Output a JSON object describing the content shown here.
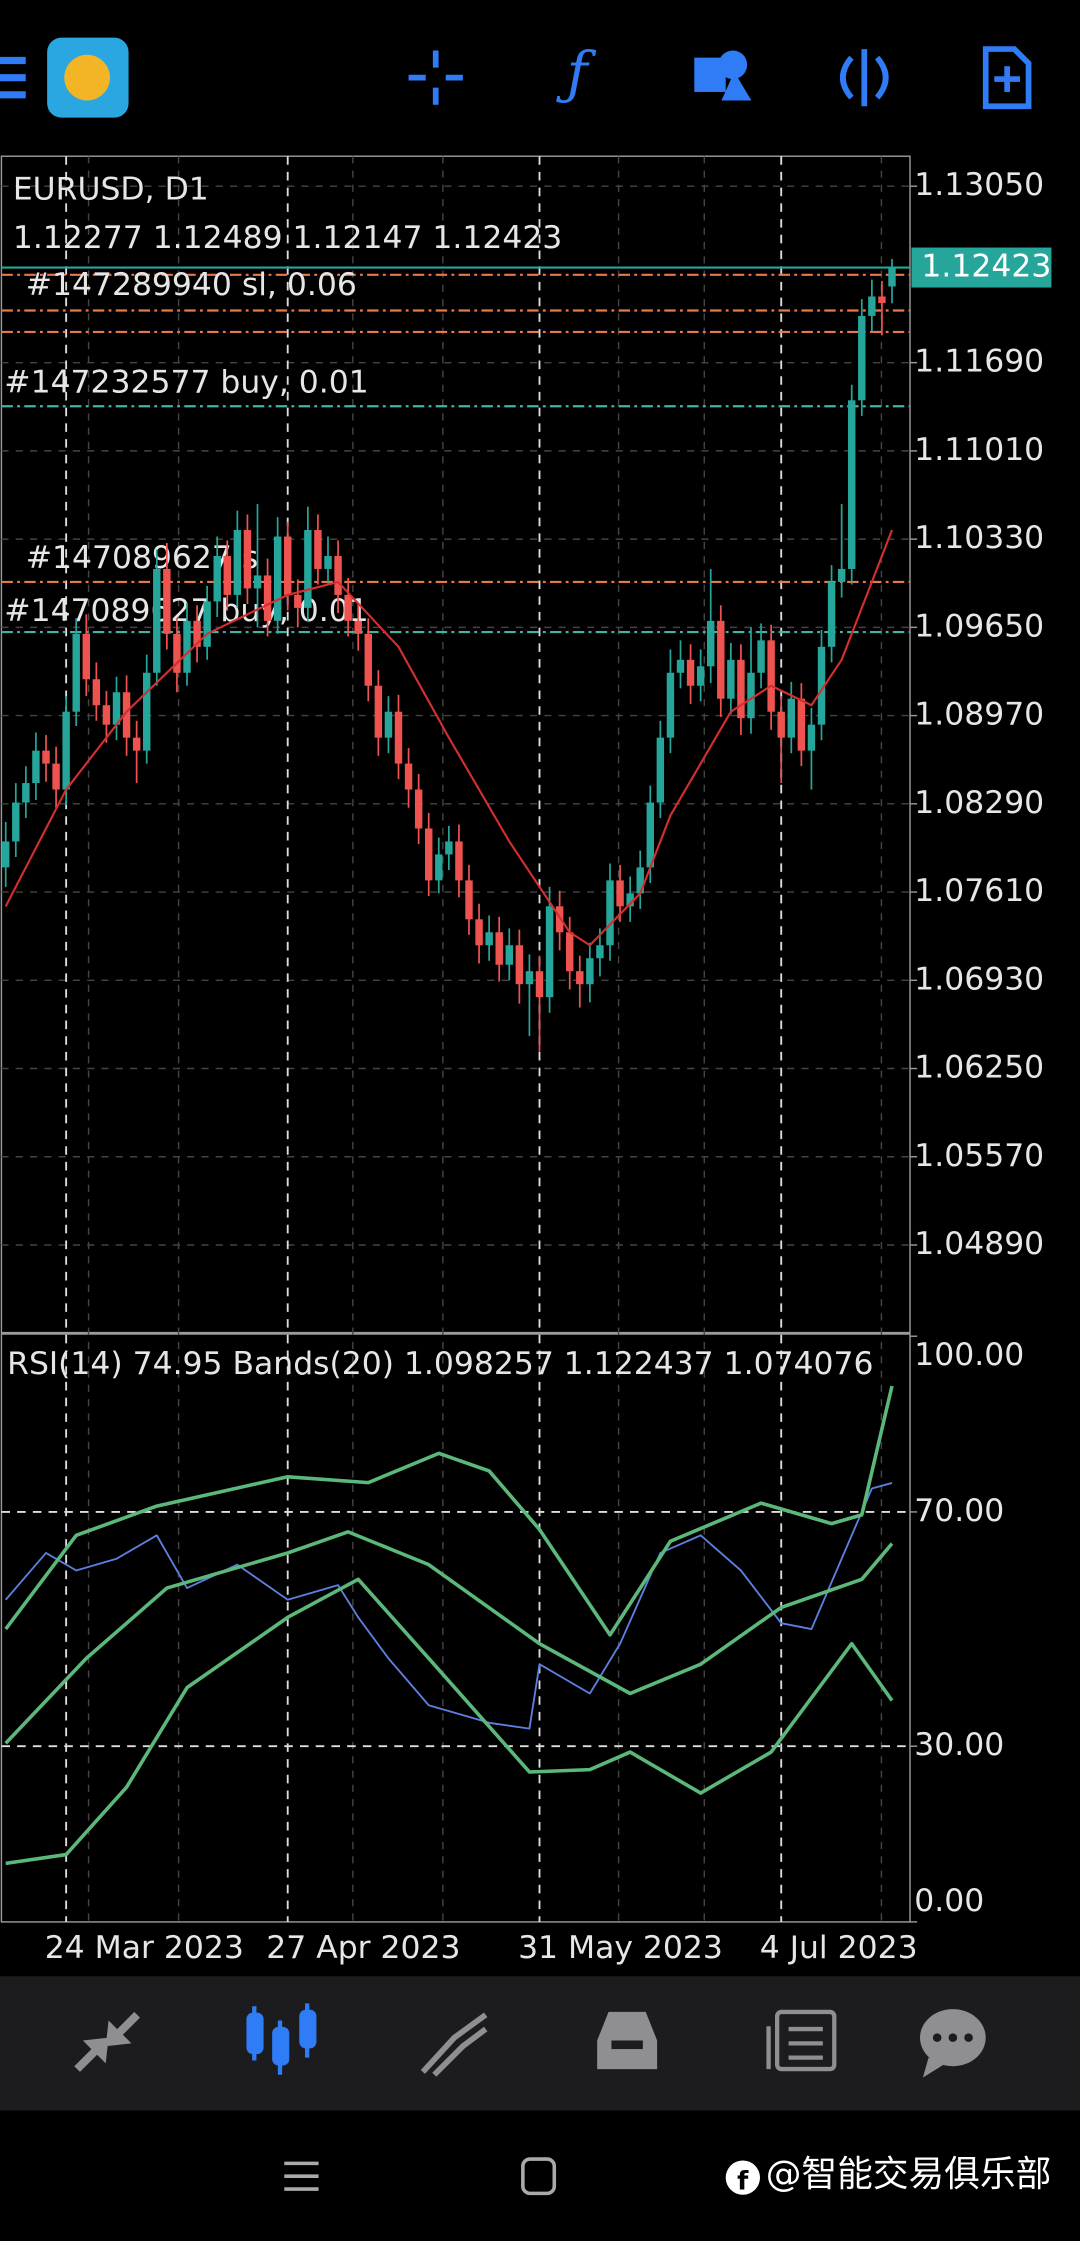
{
  "chart_data": [
    {
      "type": "candlestick",
      "title": "EURUSD, D1",
      "ohlc_text": "1.12277 1.12489 1.12147 1.12423",
      "open": [
        1.078,
        1.08,
        1.083,
        1.0845,
        1.087,
        1.086,
        1.084,
        1.09,
        1.096,
        1.0925,
        1.0905,
        1.089,
        1.0915,
        1.088,
        1.087,
        1.093,
        1.101,
        1.096,
        1.093,
        1.097,
        1.095,
        1.0985,
        1.102,
        1.099,
        1.104,
        1.0995,
        1.1005,
        1.097,
        1.1035,
        1.099,
        1.098,
        1.104,
        1.101,
        1.102,
        1.099,
        1.097,
        1.096,
        1.092,
        1.088,
        1.09,
        1.086,
        1.084,
        1.081,
        1.077,
        1.079,
        1.08,
        1.077,
        1.074,
        1.072,
        1.073,
        1.0705,
        1.072,
        1.069,
        1.07,
        1.068,
        1.075,
        1.073,
        1.07,
        1.069,
        1.071,
        1.072,
        1.077,
        1.075,
        1.076,
        1.078,
        1.083,
        1.088,
        1.093,
        1.094,
        1.092,
        1.0935,
        1.097,
        1.091,
        1.094,
        1.0895,
        1.093,
        1.0955,
        1.09,
        1.088,
        1.091,
        1.087,
        1.089,
        1.095,
        1.1,
        1.101,
        1.114,
        1.1205,
        1.122,
        1.12277
      ],
      "high": [
        1.0815,
        1.0845,
        1.0858,
        1.0884,
        1.0882,
        1.0873,
        1.0912,
        1.0972,
        1.0975,
        1.0938,
        1.0916,
        1.0927,
        1.0928,
        1.0893,
        1.0944,
        1.1025,
        1.103,
        1.0972,
        1.0984,
        1.0982,
        1.0997,
        1.1035,
        1.1032,
        1.1055,
        1.1052,
        1.106,
        1.1018,
        1.105,
        1.1046,
        1.1002,
        1.1058,
        1.1052,
        1.1035,
        1.1032,
        1.1003,
        1.0982,
        1.0972,
        1.0932,
        1.0912,
        1.0913,
        1.0872,
        1.0852,
        1.0822,
        1.0803,
        1.0812,
        1.0813,
        1.0782,
        1.0752,
        1.0743,
        1.0742,
        1.0733,
        1.0732,
        1.0713,
        1.0712,
        1.0765,
        1.0762,
        1.0742,
        1.0712,
        1.0722,
        1.0733,
        1.0783,
        1.0782,
        1.0773,
        1.0793,
        1.0843,
        1.0893,
        1.0948,
        1.0955,
        1.0952,
        1.0948,
        1.101,
        1.0982,
        1.0953,
        1.0952,
        1.0965,
        1.0968,
        1.0967,
        1.0912,
        1.0923,
        1.0922,
        1.0903,
        1.0963,
        1.1013,
        1.106,
        1.1152,
        1.1218,
        1.1233,
        1.1232,
        1.12489
      ],
      "low": [
        1.0765,
        1.0788,
        1.0818,
        1.0832,
        1.0846,
        1.0826,
        1.0828,
        1.0889,
        1.0912,
        1.0893,
        1.0876,
        1.0878,
        1.0866,
        1.0845,
        1.086,
        1.092,
        1.0948,
        1.0915,
        1.092,
        1.0938,
        1.094,
        1.0973,
        1.0978,
        1.098,
        1.0983,
        1.0965,
        1.0958,
        1.096,
        1.0978,
        1.0965,
        1.097,
        1.0998,
        1.0998,
        1.0976,
        1.0958,
        1.0947,
        1.0908,
        1.0866,
        1.0868,
        1.0848,
        1.0826,
        1.0798,
        1.0758,
        1.076,
        1.0778,
        1.0757,
        1.0728,
        1.0706,
        1.0708,
        1.0692,
        1.0693,
        1.0675,
        1.065,
        1.0638,
        1.0668,
        1.0716,
        1.0686,
        1.0672,
        1.0676,
        1.0696,
        1.0708,
        1.0738,
        1.0738,
        1.0748,
        1.0768,
        1.0818,
        1.0868,
        1.0918,
        1.0906,
        1.0908,
        1.0922,
        1.0896,
        1.0898,
        1.0882,
        1.0883,
        1.0918,
        1.0886,
        1.0845,
        1.0868,
        1.0858,
        1.084,
        1.0878,
        1.0938,
        1.0988,
        1.0998,
        1.1128,
        1.1193,
        1.119,
        1.12147
      ],
      "close": [
        1.08,
        1.083,
        1.0845,
        1.087,
        1.086,
        1.084,
        1.09,
        1.096,
        1.0925,
        1.0905,
        1.089,
        1.0915,
        1.088,
        1.087,
        1.093,
        1.101,
        1.096,
        1.093,
        1.097,
        1.095,
        1.0985,
        1.102,
        1.099,
        1.104,
        1.0995,
        1.1005,
        1.097,
        1.1035,
        1.099,
        1.098,
        1.104,
        1.101,
        1.102,
        1.099,
        1.097,
        1.096,
        1.092,
        1.088,
        1.09,
        1.086,
        1.084,
        1.081,
        1.077,
        1.079,
        1.08,
        1.077,
        1.074,
        1.072,
        1.073,
        1.0705,
        1.072,
        1.069,
        1.07,
        1.068,
        1.075,
        1.073,
        1.07,
        1.069,
        1.071,
        1.072,
        1.077,
        1.075,
        1.076,
        1.078,
        1.083,
        1.088,
        1.093,
        1.094,
        1.092,
        1.0935,
        1.097,
        1.091,
        1.094,
        1.0895,
        1.093,
        1.0955,
        1.09,
        1.088,
        1.091,
        1.087,
        1.089,
        1.095,
        1.1,
        1.101,
        1.114,
        1.1205,
        1.122,
        1.1215,
        1.12423
      ],
      "up_color": "#26a69a",
      "down_color": "#ef5350",
      "ylim": [
        1.0422,
        1.1327
      ],
      "yticks": [
        {
          "value": 1.1305,
          "label": "1.13050"
        },
        {
          "value": 1.1169,
          "label": "1.11690"
        },
        {
          "value": 1.1101,
          "label": "1.11010"
        },
        {
          "value": 1.1033,
          "label": "1.10330"
        },
        {
          "value": 1.0965,
          "label": "1.09650"
        },
        {
          "value": 1.0897,
          "label": "1.08970"
        },
        {
          "value": 1.0829,
          "label": "1.08290"
        },
        {
          "value": 1.0761,
          "label": "1.07610"
        },
        {
          "value": 1.0693,
          "label": "1.06930"
        },
        {
          "value": 1.0625,
          "label": "1.06250"
        },
        {
          "value": 1.0557,
          "label": "1.05570"
        },
        {
          "value": 1.0489,
          "label": "1.04890"
        }
      ],
      "date_ticks": [
        {
          "value": 6,
          "label": "24 Mar 2023"
        },
        {
          "value": 28,
          "label": "27 Apr 2023"
        },
        {
          "value": 53,
          "label": "31 May 2023"
        },
        {
          "value": 77,
          "label": "4 Jul 2023"
        }
      ],
      "current_price": 1.12423,
      "orders": [
        {
          "label": "#147289940 sl, 0.06",
          "price": 1.12367,
          "color": "#e8784a"
        },
        {
          "label": "#147232577 buy, 0.01",
          "price": 1.11354,
          "color": "#3fb5a5"
        },
        {
          "label": "#147089627 s",
          "price": 1.1,
          "color": "#e8784a"
        },
        {
          "label": "#147089627 buy, 0.01",
          "price": 1.09614,
          "color": "#3fb5a5"
        }
      ],
      "levels": [
        1.12092,
        1.11927
      ],
      "level_color": "#e8784a",
      "ma": {
        "color": "#d32f2f",
        "x": [
          0,
          6,
          12,
          20,
          28,
          33,
          39,
          44,
          50,
          56,
          58,
          63,
          66,
          72,
          76,
          80,
          83,
          88
        ],
        "values": [
          1.075,
          1.084,
          1.09,
          1.096,
          1.099,
          1.1,
          1.095,
          1.088,
          1.08,
          1.073,
          1.072,
          1.076,
          1.082,
          1.09,
          1.092,
          1.0905,
          1.094,
          1.104
        ]
      },
      "grid": true
    },
    {
      "type": "line",
      "title": "RSI(14) 74.95 Bands(20) 1.098257 1.122437 1.074076",
      "ylim": [
        0,
        100
      ],
      "yticks": [
        {
          "value": 100,
          "label": "100.00"
        },
        {
          "value": 70,
          "label": "70.00"
        },
        {
          "value": 30,
          "label": "30.00"
        },
        {
          "value": 0,
          "label": "0.00"
        }
      ],
      "levels": [
        70,
        30
      ],
      "series": [
        {
          "color": "#5c7fe0",
          "x": [
            0,
            4,
            7,
            11,
            15,
            18,
            23,
            28,
            33,
            35,
            38,
            42,
            48,
            52,
            53,
            58,
            61,
            65,
            69,
            73,
            77,
            80,
            83,
            86,
            88
          ],
          "values": [
            55,
            63,
            60,
            62,
            66,
            57,
            61,
            55,
            57.5,
            52,
            45,
            37,
            34,
            33,
            44,
            39,
            47.5,
            63,
            66,
            60,
            51,
            50,
            62,
            74,
            74.95
          ]
        },
        {
          "color": "#5cb87a",
          "x": [
            0,
            7,
            15,
            28,
            36,
            43,
            48,
            53,
            60,
            66,
            75,
            82,
            85,
            88
          ],
          "values": [
            50,
            66,
            71,
            76,
            75,
            80,
            77,
            67,
            49,
            65,
            71.5,
            68,
            69.5,
            91.5
          ]
        },
        {
          "color": "#5cb87a",
          "x": [
            0,
            8,
            16,
            28,
            34,
            42,
            53,
            62,
            69,
            77,
            85,
            88
          ],
          "values": [
            30.5,
            45,
            57,
            63,
            66.6,
            61,
            47.5,
            39,
            44,
            53.7,
            58.5,
            64.6
          ]
        },
        {
          "color": "#5cb87a",
          "x": [
            0,
            6,
            12,
            18,
            28,
            35,
            42,
            52,
            58,
            62,
            69,
            76,
            84,
            88
          ],
          "values": [
            10,
            11.5,
            23,
            40,
            52,
            58.5,
            45,
            25.6,
            26,
            29,
            22,
            29,
            47.5,
            37.8
          ]
        }
      ]
    }
  ],
  "watermark": "@智能交易俱乐部"
}
